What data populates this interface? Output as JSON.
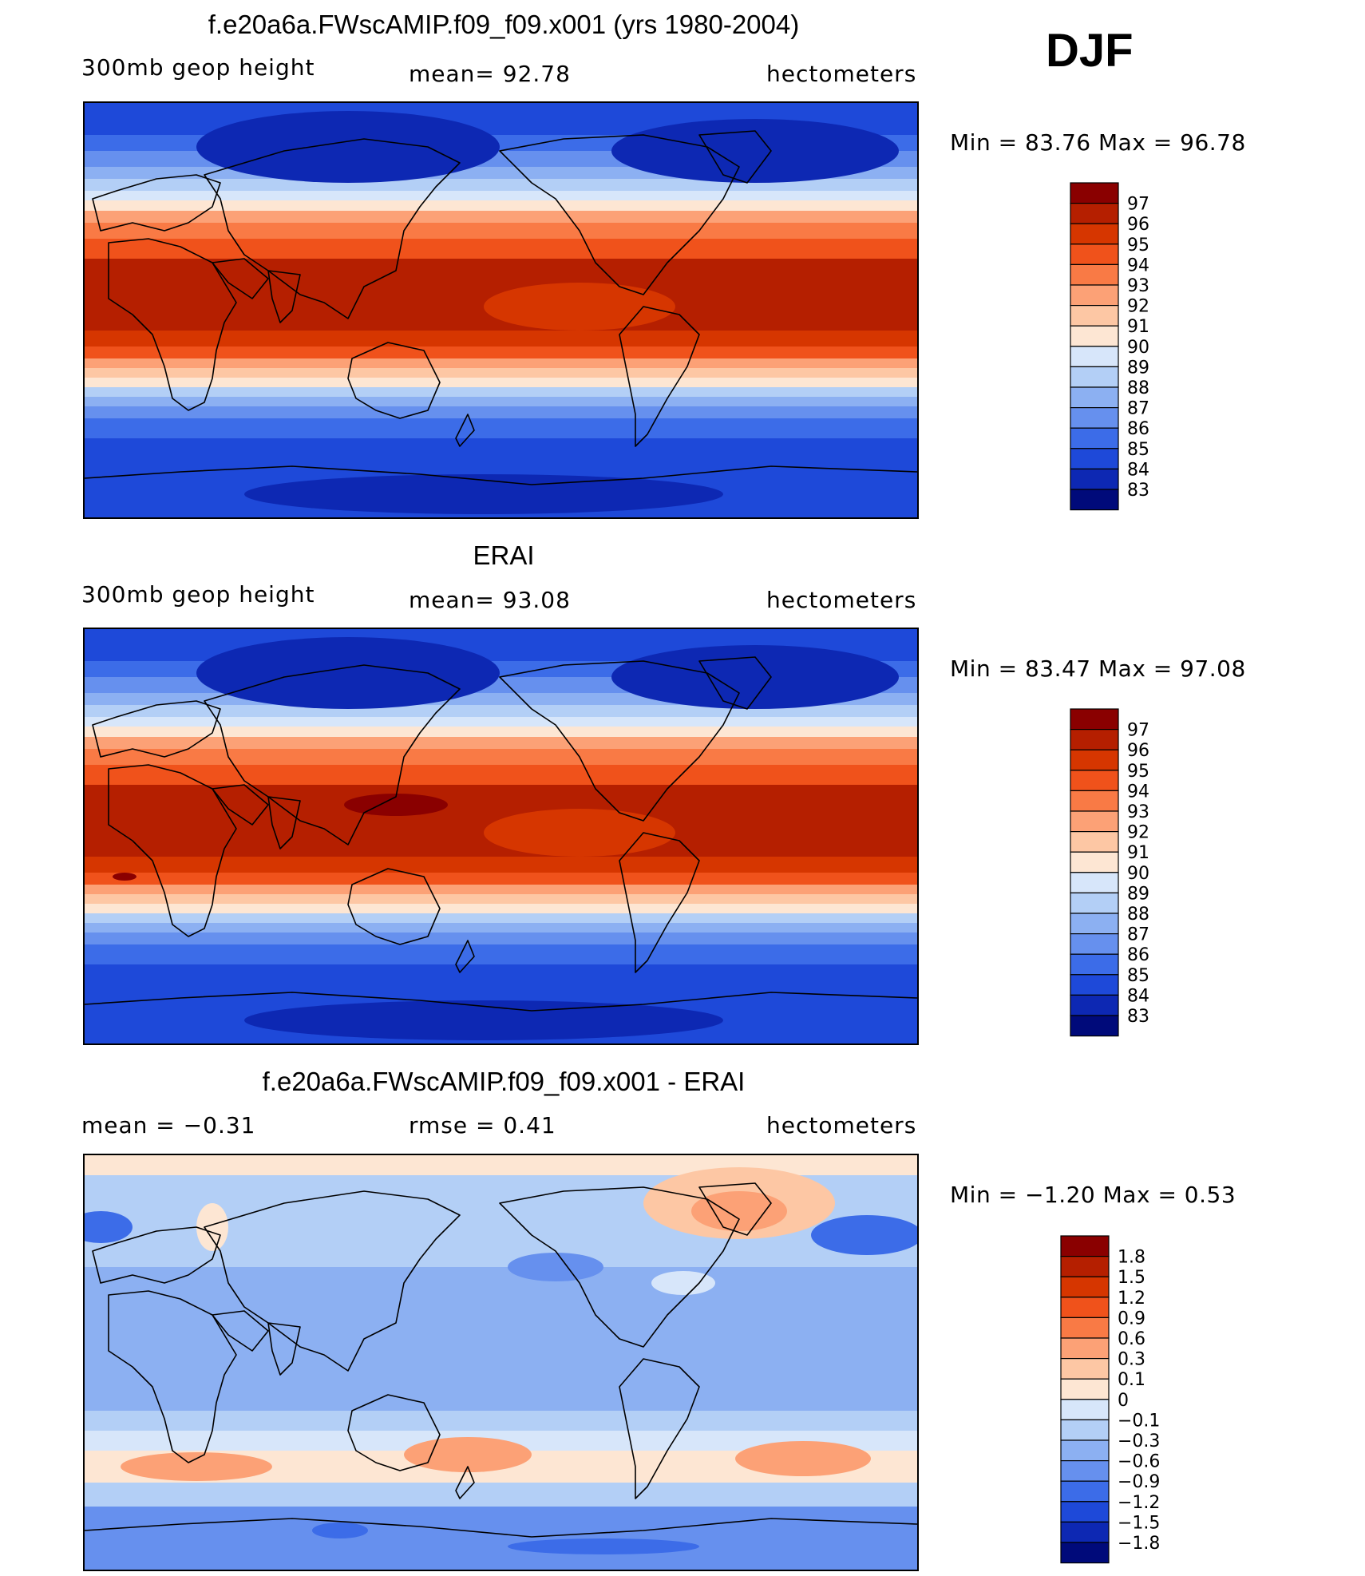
{
  "season": "DJF",
  "panels": [
    {
      "title": "f.e20a6a.FWscAMIP.f09_f09.x001 (yrs 1980-2004)",
      "left_label": "300mb  geop  height",
      "center_label": "mean=   92.78",
      "units": "hectometers",
      "min_max": "Min  =    83.76  Max  =    96.78",
      "colorbar": {
        "labels": [
          "97",
          "96",
          "95",
          "94",
          "93",
          "92",
          "91",
          "90",
          "89",
          "88",
          "87",
          "86",
          "85",
          "84",
          "83"
        ],
        "colors": [
          "#8a0000",
          "#b51f00",
          "#d63600",
          "#f0521b",
          "#f97a45",
          "#fca176",
          "#fdc7a4",
          "#fde6d3",
          "#d7e6fa",
          "#b3cff6",
          "#8cb0f2",
          "#6690ee",
          "#3c6ce8",
          "#1e49d9",
          "#0d28b3",
          "#000a7a"
        ]
      }
    },
    {
      "title": "ERAI",
      "left_label": "300mb  geop  height",
      "center_label": "mean=   93.08",
      "units": "hectometers",
      "min_max": "Min  =    83.47  Max  =    97.08",
      "colorbar": {
        "labels": [
          "97",
          "96",
          "95",
          "94",
          "93",
          "92",
          "91",
          "90",
          "89",
          "88",
          "87",
          "86",
          "85",
          "84",
          "83"
        ],
        "colors": [
          "#8a0000",
          "#b51f00",
          "#d63600",
          "#f0521b",
          "#f97a45",
          "#fca176",
          "#fdc7a4",
          "#fde6d3",
          "#d7e6fa",
          "#b3cff6",
          "#8cb0f2",
          "#6690ee",
          "#3c6ce8",
          "#1e49d9",
          "#0d28b3",
          "#000a7a"
        ]
      }
    },
    {
      "title": "f.e20a6a.FWscAMIP.f09_f09.x001 - ERAI",
      "left_label": "mean  =    −0.31",
      "center_label": "rmse  =     0.41",
      "units": "hectometers",
      "min_max": "Min  =    −1.20  Max  =      0.53",
      "colorbar": {
        "labels": [
          "1.8",
          "1.5",
          "1.2",
          "0.9",
          "0.6",
          "0.3",
          "0.1",
          "0",
          "−0.1",
          "−0.3",
          "−0.6",
          "−0.9",
          "−1.2",
          "−1.5",
          "−1.8"
        ],
        "colors": [
          "#8a0000",
          "#b51f00",
          "#d63600",
          "#f0521b",
          "#f97a45",
          "#fca176",
          "#fdc7a4",
          "#fde6d3",
          "#d7e6fa",
          "#b3cff6",
          "#8cb0f2",
          "#6690ee",
          "#3c6ce8",
          "#1e49d9",
          "#0d28b3",
          "#000a7a"
        ]
      }
    }
  ]
}
